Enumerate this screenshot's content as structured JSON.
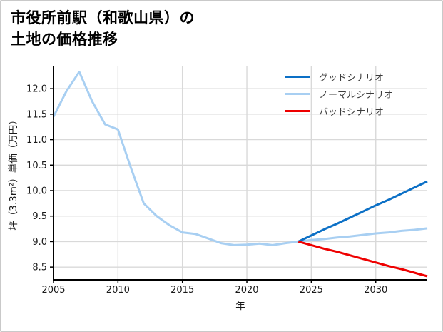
{
  "header": {
    "title_line1": "市役所前駅（和歌山県）の",
    "title_line2": "土地の価格推移"
  },
  "chart_data": {
    "type": "line",
    "title": "市役所前駅（和歌山県）の土地の価格推移",
    "xlabel": "年",
    "ylabel": "坪（3.3m²）単価（万円）",
    "xlim": [
      2005,
      2034
    ],
    "ylim": [
      8.25,
      12.45
    ],
    "xticks": [
      2005,
      2010,
      2015,
      2020,
      2025,
      2030
    ],
    "yticks": [
      8.5,
      9.0,
      9.5,
      10.0,
      10.5,
      11.0,
      11.5,
      12.0
    ],
    "grid": true,
    "legend_position": "upper right",
    "colors": {
      "grid": "#d9d9d9",
      "axis": "#000000",
      "good": "#0c70c6",
      "normal": "#a8cff2",
      "bad": "#ee0000"
    },
    "series": [
      {
        "id": "good",
        "name": "グッドシナリオ",
        "color": "#0c70c6",
        "x": [
          2024,
          2025,
          2026,
          2027,
          2028,
          2029,
          2030,
          2031,
          2032,
          2033,
          2034
        ],
        "values": [
          9.0,
          9.12,
          9.24,
          9.35,
          9.47,
          9.59,
          9.71,
          9.82,
          9.94,
          10.06,
          10.18
        ]
      },
      {
        "id": "normal",
        "name": "ノーマルシナリオ",
        "color": "#a8cff2",
        "x": [
          2005,
          2006,
          2007,
          2008,
          2009,
          2010,
          2011,
          2012,
          2013,
          2014,
          2015,
          2016,
          2017,
          2018,
          2019,
          2020,
          2021,
          2022,
          2023,
          2024,
          2025,
          2026,
          2027,
          2028,
          2029,
          2030,
          2031,
          2032,
          2033,
          2034
        ],
        "values": [
          11.45,
          11.95,
          12.33,
          11.75,
          11.3,
          11.2,
          10.45,
          9.75,
          9.5,
          9.32,
          9.18,
          9.15,
          9.06,
          8.97,
          8.93,
          8.94,
          8.96,
          8.93,
          8.97,
          9.0,
          9.03,
          9.05,
          9.08,
          9.1,
          9.13,
          9.16,
          9.18,
          9.21,
          9.23,
          9.26
        ]
      },
      {
        "id": "bad",
        "name": "バッドシナリオ",
        "color": "#ee0000",
        "x": [
          2024,
          2025,
          2026,
          2027,
          2028,
          2029,
          2030,
          2031,
          2032,
          2033,
          2034
        ],
        "values": [
          9.0,
          8.93,
          8.86,
          8.8,
          8.73,
          8.66,
          8.59,
          8.52,
          8.46,
          8.39,
          8.32
        ]
      }
    ]
  }
}
